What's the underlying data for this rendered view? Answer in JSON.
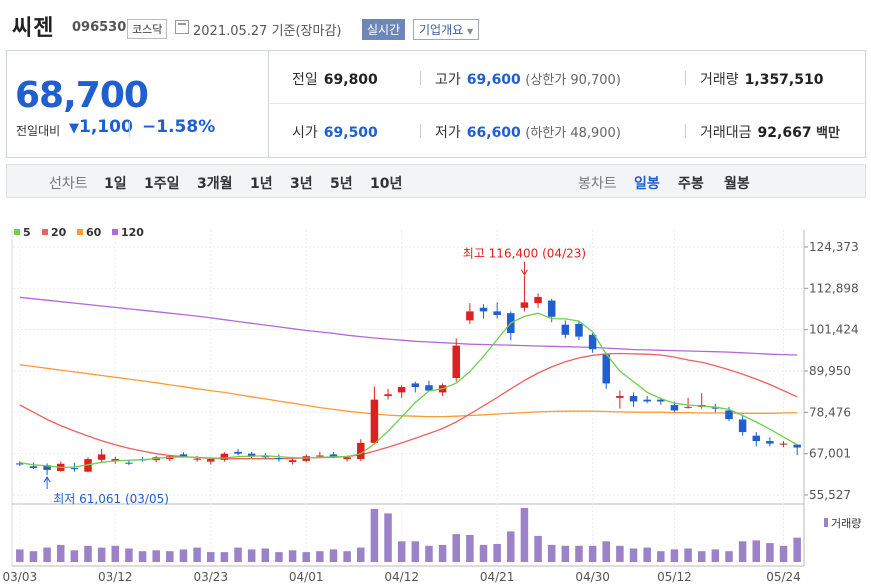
{
  "header": {
    "name": "씨젠",
    "code": "096530",
    "market": "코스닥",
    "date": "2021.05.27 기준(장마감)",
    "realtime_label": "실시간",
    "company_label": "기업개요"
  },
  "quote": {
    "price": "68,700",
    "change_label": "전일대비",
    "change": "1,100",
    "change_pct": "−1.58%",
    "prev_close_label": "전일",
    "prev_close": "69,800",
    "high_label": "고가",
    "high": "69,600",
    "upper_limit": "(상한가 90,700)",
    "volume_label": "거래량",
    "volume": "1,357,510",
    "open_label": "시가",
    "open": "69,500",
    "low_label": "저가",
    "low": "66,600",
    "lower_limit": "(하한가 48,900)",
    "amount_label": "거래대금",
    "amount": "92,667",
    "amount_unit": "백만"
  },
  "tabs": {
    "line_label": "선차트",
    "periods": [
      "1일",
      "1주일",
      "3개월",
      "1년",
      "3년",
      "5년",
      "10년"
    ],
    "candle_label": "봉차트",
    "candles": [
      "일봉",
      "주봉",
      "월봉"
    ],
    "active_candle": "일봉"
  },
  "colors": {
    "up": "#e02020",
    "down": "#1f5fcf",
    "ma5": "#6fcf4f",
    "ma20": "#f06060",
    "ma60": "#ff9a33",
    "ma120": "#b36ad9",
    "volume": "#9b82c9"
  },
  "chart_data": {
    "type": "candlestick",
    "legend": [
      {
        "name": "5",
        "color": "#6fcf4f"
      },
      {
        "name": "20",
        "color": "#f06060"
      },
      {
        "name": "60",
        "color": "#ff9a33"
      },
      {
        "name": "120",
        "color": "#b36ad9"
      }
    ],
    "ylim": [
      55527,
      124373
    ],
    "y_ticks": [
      "124,373",
      "112,898",
      "101,424",
      "89,950",
      "78,476",
      "67,001",
      "55,527"
    ],
    "y_tick_values": [
      124373,
      112898,
      101424,
      89950,
      78476,
      67001,
      55527
    ],
    "x_ticks": [
      {
        "label": "03/03",
        "index": 0
      },
      {
        "label": "03/12",
        "index": 7
      },
      {
        "label": "03/23",
        "index": 14
      },
      {
        "label": "04/01",
        "index": 21
      },
      {
        "label": "04/12",
        "index": 28
      },
      {
        "label": "04/21",
        "index": 35
      },
      {
        "label": "04/30",
        "index": 42
      },
      {
        "label": "05/12",
        "index": 48
      },
      {
        "label": "05/24",
        "index": 56
      }
    ],
    "max_label": "최고 116,400 (04/23)",
    "max_index": 37,
    "max_value": 116400,
    "min_label": "최저 61,061 (03/05)",
    "min_index": 2,
    "min_value": 61061,
    "volume_label": "거래량",
    "candles": [
      {
        "o": 64300,
        "h": 64900,
        "l": 63600,
        "c": 64000
      },
      {
        "o": 63500,
        "h": 64600,
        "l": 62700,
        "c": 63000
      },
      {
        "o": 63800,
        "h": 64300,
        "l": 61061,
        "c": 62500
      },
      {
        "o": 62200,
        "h": 64800,
        "l": 62000,
        "c": 64200
      },
      {
        "o": 63000,
        "h": 64500,
        "l": 62000,
        "c": 62700
      },
      {
        "o": 62000,
        "h": 66000,
        "l": 61800,
        "c": 65500
      },
      {
        "o": 65300,
        "h": 68300,
        "l": 64500,
        "c": 66800
      },
      {
        "o": 65000,
        "h": 66200,
        "l": 64200,
        "c": 65500
      },
      {
        "o": 64500,
        "h": 65300,
        "l": 63800,
        "c": 64300
      },
      {
        "o": 65500,
        "h": 66100,
        "l": 64800,
        "c": 65100
      },
      {
        "o": 65200,
        "h": 66400,
        "l": 64600,
        "c": 66000
      },
      {
        "o": 65500,
        "h": 66500,
        "l": 65000,
        "c": 66300
      },
      {
        "o": 66800,
        "h": 67400,
        "l": 66000,
        "c": 66200
      },
      {
        "o": 65500,
        "h": 66400,
        "l": 64800,
        "c": 65600
      },
      {
        "o": 64800,
        "h": 65800,
        "l": 64000,
        "c": 65500
      },
      {
        "o": 65300,
        "h": 67400,
        "l": 64800,
        "c": 67000
      },
      {
        "o": 67500,
        "h": 68300,
        "l": 66500,
        "c": 67000
      },
      {
        "o": 67000,
        "h": 67500,
        "l": 65800,
        "c": 66200
      },
      {
        "o": 66500,
        "h": 67200,
        "l": 65600,
        "c": 66000
      },
      {
        "o": 65800,
        "h": 66800,
        "l": 64800,
        "c": 65600
      },
      {
        "o": 64700,
        "h": 65700,
        "l": 64000,
        "c": 65200
      },
      {
        "o": 65000,
        "h": 66800,
        "l": 64600,
        "c": 66300
      },
      {
        "o": 66500,
        "h": 67500,
        "l": 65800,
        "c": 66500
      },
      {
        "o": 66800,
        "h": 67500,
        "l": 65800,
        "c": 66200
      },
      {
        "o": 65500,
        "h": 66500,
        "l": 64800,
        "c": 66000
      },
      {
        "o": 65500,
        "h": 71000,
        "l": 65000,
        "c": 70000
      },
      {
        "o": 70000,
        "h": 85600,
        "l": 69500,
        "c": 82000
      },
      {
        "o": 83000,
        "h": 85000,
        "l": 82000,
        "c": 83500
      },
      {
        "o": 84000,
        "h": 86000,
        "l": 82500,
        "c": 85500
      },
      {
        "o": 86500,
        "h": 87000,
        "l": 84000,
        "c": 85500
      },
      {
        "o": 86000,
        "h": 87300,
        "l": 84500,
        "c": 84500
      },
      {
        "o": 84000,
        "h": 86500,
        "l": 83000,
        "c": 86000
      },
      {
        "o": 88000,
        "h": 99000,
        "l": 87000,
        "c": 97000
      },
      {
        "o": 104000,
        "h": 108800,
        "l": 103000,
        "c": 106500
      },
      {
        "o": 107500,
        "h": 108500,
        "l": 104500,
        "c": 106500
      },
      {
        "o": 106500,
        "h": 109000,
        "l": 104500,
        "c": 105500
      },
      {
        "o": 106000,
        "h": 106500,
        "l": 98500,
        "c": 100500
      },
      {
        "o": 107500,
        "h": 116400,
        "l": 106500,
        "c": 109000
      },
      {
        "o": 108800,
        "h": 111500,
        "l": 107500,
        "c": 110500
      },
      {
        "o": 109500,
        "h": 110000,
        "l": 103500,
        "c": 105000
      },
      {
        "o": 102800,
        "h": 104000,
        "l": 99000,
        "c": 100000
      },
      {
        "o": 103000,
        "h": 104000,
        "l": 98500,
        "c": 99500
      },
      {
        "o": 100000,
        "h": 100500,
        "l": 95000,
        "c": 96000
      },
      {
        "o": 94500,
        "h": 95000,
        "l": 85000,
        "c": 86500
      },
      {
        "o": 82500,
        "h": 84500,
        "l": 79500,
        "c": 83000
      },
      {
        "o": 83000,
        "h": 84000,
        "l": 80000,
        "c": 81500
      },
      {
        "o": 82000,
        "h": 83000,
        "l": 81000,
        "c": 81500
      },
      {
        "o": 82000,
        "h": 82600,
        "l": 80600,
        "c": 81500
      },
      {
        "o": 80500,
        "h": 81500,
        "l": 78600,
        "c": 79000
      },
      {
        "o": 80000,
        "h": 82500,
        "l": 79500,
        "c": 80000
      },
      {
        "o": 80000,
        "h": 83800,
        "l": 79500,
        "c": 80500
      },
      {
        "o": 80000,
        "h": 80800,
        "l": 78500,
        "c": 79500
      },
      {
        "o": 79000,
        "h": 80000,
        "l": 76000,
        "c": 76600
      },
      {
        "o": 76500,
        "h": 77500,
        "l": 72000,
        "c": 73000
      },
      {
        "o": 72000,
        "h": 73000,
        "l": 69000,
        "c": 70500
      },
      {
        "o": 70500,
        "h": 71500,
        "l": 69000,
        "c": 69800
      },
      {
        "o": 69500,
        "h": 70500,
        "l": 68800,
        "c": 69800
      },
      {
        "o": 69500,
        "h": 69600,
        "l": 66600,
        "c": 68700
      }
    ],
    "ma5": [
      64500,
      63900,
      63600,
      63200,
      63300,
      63900,
      64600,
      65000,
      65200,
      65300,
      65700,
      66000,
      66100,
      66000,
      65800,
      65800,
      66200,
      66300,
      66400,
      66200,
      65900,
      65800,
      66000,
      66100,
      66200,
      67000,
      69700,
      73200,
      77200,
      81200,
      84400,
      85000,
      86600,
      89800,
      94000,
      98700,
      103300,
      105100,
      106000,
      104500,
      104400,
      103800,
      100800,
      94600,
      89900,
      87000,
      84000,
      82300,
      81000,
      80500,
      80200,
      79900,
      79300,
      77600,
      75800,
      73800,
      71600,
      69500
    ],
    "ma20": [
      80500,
      78500,
      76500,
      74800,
      73300,
      71900,
      70600,
      69500,
      68500,
      67700,
      67000,
      66500,
      66200,
      65900,
      65700,
      65600,
      65600,
      65600,
      65600,
      65600,
      65700,
      65800,
      65900,
      66000,
      66200,
      66700,
      67700,
      68800,
      70000,
      71300,
      72600,
      74000,
      75800,
      78000,
      80300,
      82600,
      85000,
      87300,
      89400,
      91100,
      92500,
      93600,
      94300,
      94700,
      94800,
      94700,
      94600,
      94400,
      93800,
      93000,
      92400,
      91400,
      90300,
      89100,
      87700,
      86200,
      84500,
      82800
    ],
    "ma60": [
      91700,
      91200,
      90700,
      90200,
      89700,
      89200,
      88700,
      88200,
      87700,
      87200,
      86700,
      86100,
      85600,
      85000,
      84500,
      84000,
      83400,
      82800,
      82200,
      81600,
      81000,
      80400,
      79800,
      79300,
      78800,
      78400,
      78000,
      77700,
      77500,
      77400,
      77300,
      77300,
      77400,
      77600,
      77800,
      78000,
      78200,
      78400,
      78600,
      78700,
      78800,
      78800,
      78800,
      78700,
      78600,
      78500,
      78500,
      78500,
      78400,
      78400,
      78300,
      78300,
      78300,
      78200,
      78200,
      78200,
      78300,
      78400
    ],
    "ma120": [
      110400,
      110000,
      109600,
      109200,
      108800,
      108400,
      108000,
      107600,
      107200,
      106800,
      106400,
      106000,
      105600,
      105200,
      104700,
      104200,
      103700,
      103200,
      102700,
      102200,
      101700,
      101200,
      100800,
      100400,
      99900,
      99500,
      99100,
      98800,
      98500,
      98200,
      98000,
      97800,
      97600,
      97400,
      97300,
      97200,
      97100,
      97000,
      96900,
      96800,
      96700,
      96600,
      96500,
      96300,
      96100,
      95900,
      95800,
      95700,
      95600,
      95500,
      95400,
      95300,
      95200,
      95000,
      94800,
      94600,
      94500,
      94400
    ],
    "volumes": [
      1.4,
      1.2,
      1.6,
      1.9,
      1.3,
      1.8,
      1.6,
      1.8,
      1.5,
      1.2,
      1.3,
      1.2,
      1.4,
      1.6,
      1.1,
      1.1,
      1.6,
      1.4,
      1.5,
      1.1,
      1.3,
      1.1,
      1.2,
      1.4,
      1.2,
      1.6,
      5.9,
      5.4,
      2.3,
      2.3,
      1.8,
      1.9,
      3.1,
      3.0,
      1.9,
      2.0,
      3.4,
      6.0,
      2.9,
      1.9,
      1.8,
      1.8,
      1.8,
      2.3,
      1.8,
      1.5,
      1.6,
      1.2,
      1.4,
      1.5,
      1.2,
      1.4,
      1.2,
      2.3,
      2.4,
      2.1,
      1.8,
      2.7
    ]
  }
}
